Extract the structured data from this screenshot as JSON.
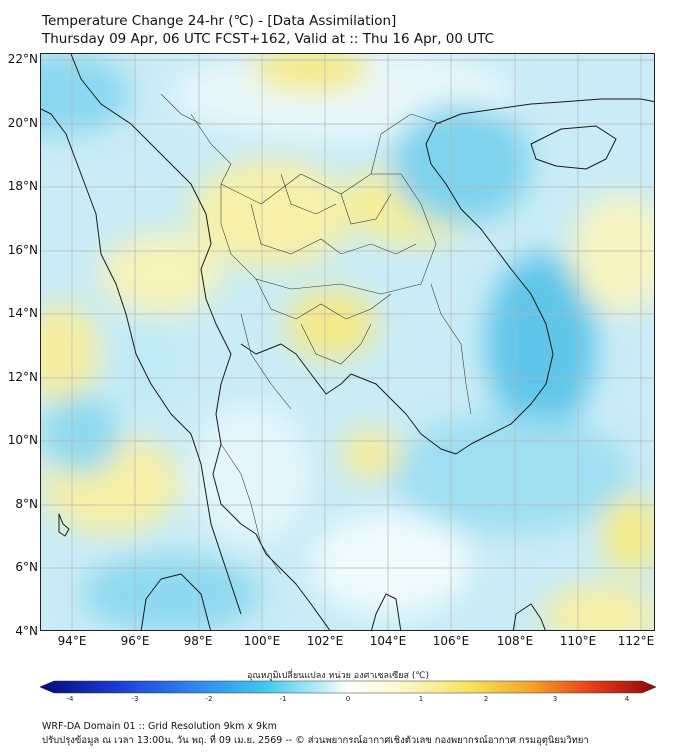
{
  "header": {
    "title_line1": "Temperature Change 24-hr (℃) - [Data Assimilation]",
    "title_line2": "Thursday 09 Apr, 06 UTC FCST+162, Valid at :: Thu 16 Apr, 00 UTC"
  },
  "map": {
    "lat_labels": [
      "22°N",
      "20°N",
      "18°N",
      "16°N",
      "14°N",
      "12°N",
      "10°N",
      "8°N",
      "6°N",
      "4°N"
    ],
    "lon_labels": [
      "94°E",
      "96°E",
      "98°E",
      "100°E",
      "102°E",
      "104°E",
      "106°E",
      "108°E",
      "110°E",
      "112°E"
    ],
    "lat_range": [
      4,
      22.2
    ],
    "lon_range": [
      93,
      112.4
    ],
    "colors": {
      "land_border": "#1a1a1a",
      "grid": "#b8b8b8",
      "near_zero": "#e8f8fb",
      "cool": "#7fd6ef",
      "warm": "#f6f0a0"
    }
  },
  "colorbar": {
    "title": "อุณหภูมิเปลี่ยนแปลง หน่วย องศาเซลเซียส (℃)",
    "ticks": [
      "-4",
      "-3",
      "-2",
      "-1",
      "0",
      "1",
      "2",
      "3",
      "4"
    ],
    "range": [
      -4,
      4
    ],
    "stops": [
      "#08087a",
      "#1a3ad0",
      "#2e86f0",
      "#3cc6ee",
      "#bfeef8",
      "#ffffff",
      "#fbf6c0",
      "#f6e25a",
      "#f2a22a",
      "#e43a1a",
      "#8a0a0a"
    ]
  },
  "footer": {
    "line1": "WRF-DA Domain 01 :: Grid Resolution 9km x 9km",
    "line2": "ปรับปรุงข้อมูล ณ เวลา 13:00น. วัน พฤ. ที่ 09 เม.ย. 2569 -- © ส่วนพยากรณ์อากาศเชิงตัวเลข กองพยากรณ์อากาศ กรมอุตุนิยมวิทยา"
  }
}
